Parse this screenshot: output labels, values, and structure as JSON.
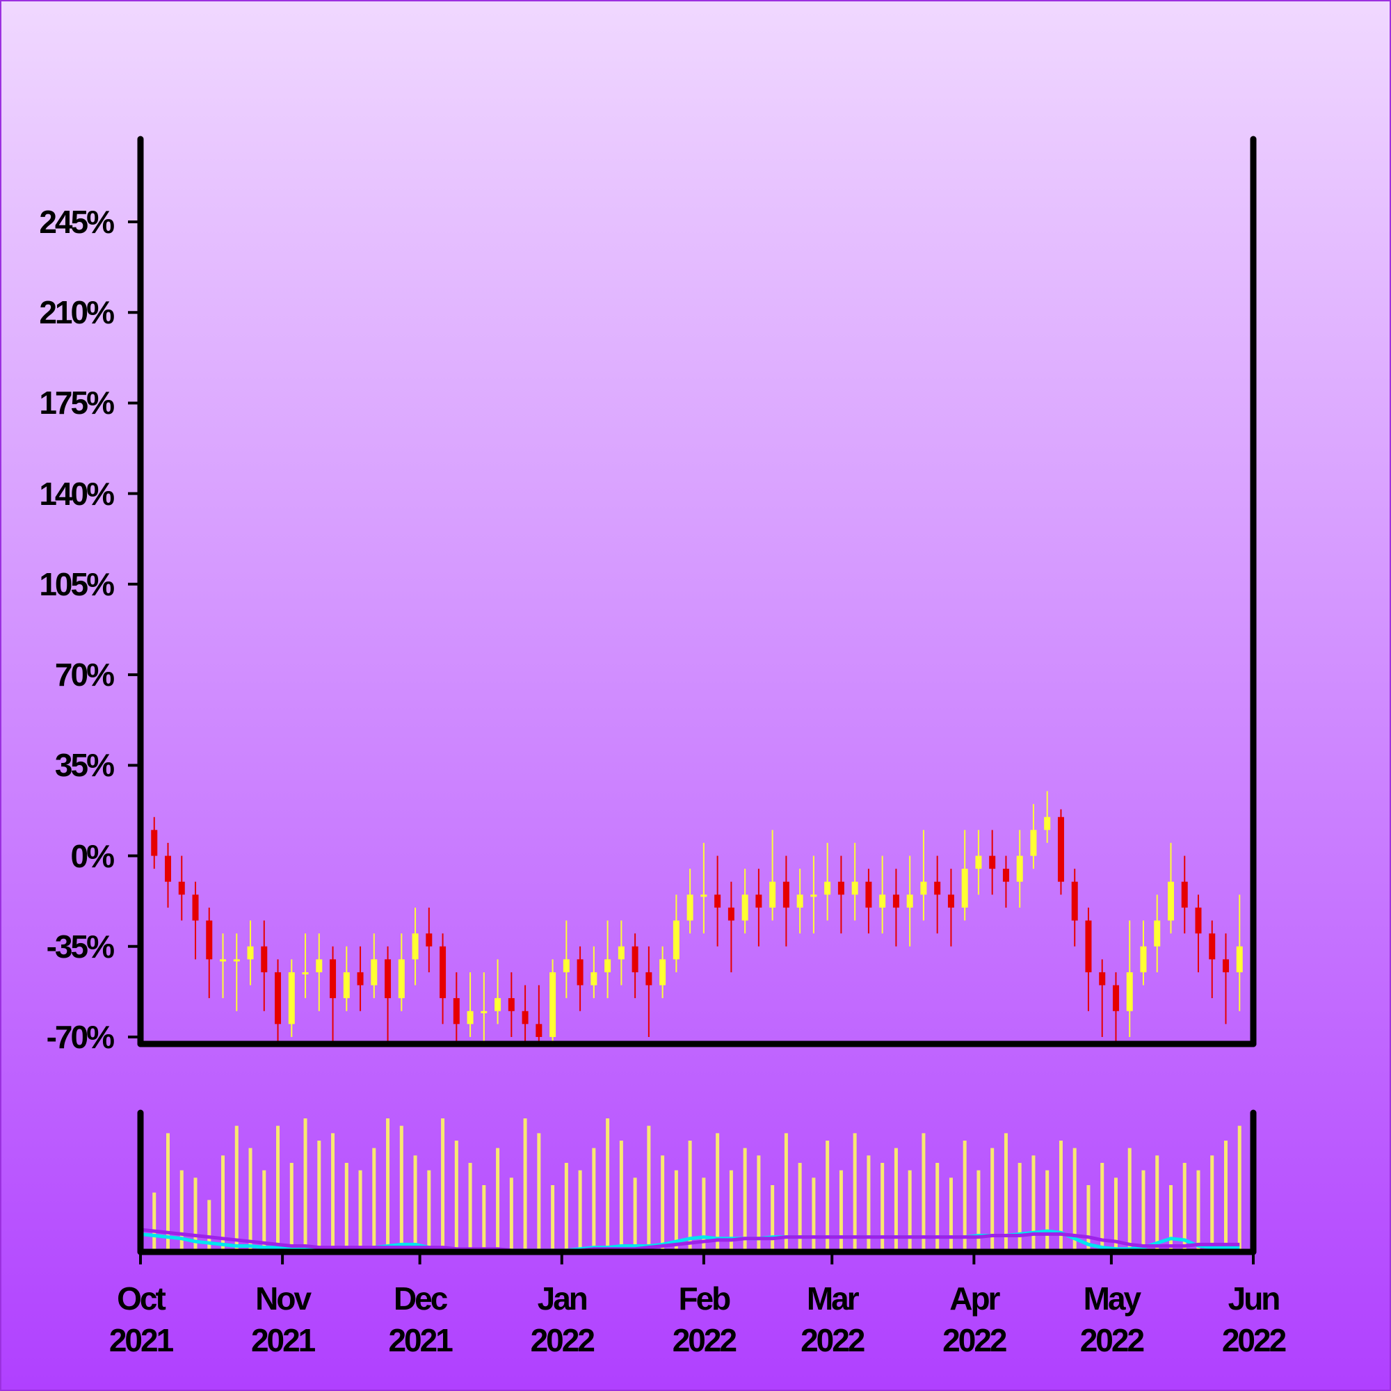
{
  "chart_data": {
    "type": "candlestick",
    "x": [
      "2021-10-01",
      "2021-10-04",
      "2021-10-07",
      "2021-10-10",
      "2021-10-13",
      "2021-10-16",
      "2021-10-19",
      "2021-10-22",
      "2021-10-25",
      "2021-10-28",
      "2021-10-31",
      "2021-11-03",
      "2021-11-06",
      "2021-11-09",
      "2021-11-12",
      "2021-11-15",
      "2021-11-18",
      "2021-11-21",
      "2021-11-24",
      "2021-11-27",
      "2021-11-30",
      "2021-12-03",
      "2021-12-06",
      "2021-12-09",
      "2021-12-12",
      "2021-12-15",
      "2021-12-18",
      "2021-12-21",
      "2021-12-24",
      "2021-12-27",
      "2021-12-30",
      "2022-01-02",
      "2022-01-05",
      "2022-01-08",
      "2022-01-11",
      "2022-01-14",
      "2022-01-17",
      "2022-01-20",
      "2022-01-23",
      "2022-01-26",
      "2022-01-29",
      "2022-02-01",
      "2022-02-04",
      "2022-02-07",
      "2022-02-10",
      "2022-02-13",
      "2022-02-16",
      "2022-02-19",
      "2022-02-22",
      "2022-02-25",
      "2022-02-28",
      "2022-03-03",
      "2022-03-06",
      "2022-03-09",
      "2022-03-12",
      "2022-03-15",
      "2022-03-18",
      "2022-03-21",
      "2022-03-24",
      "2022-03-27",
      "2022-03-30",
      "2022-04-02",
      "2022-04-05",
      "2022-04-08",
      "2022-04-11",
      "2022-04-14",
      "2022-04-17",
      "2022-04-20",
      "2022-04-23",
      "2022-04-26",
      "2022-04-29",
      "2022-05-02",
      "2022-05-05",
      "2022-05-08",
      "2022-05-11",
      "2022-05-14",
      "2022-05-17",
      "2022-05-20",
      "2022-05-23",
      "2022-05-26",
      "2022-05-29"
    ],
    "open": [
      15,
      10,
      0,
      -10,
      -15,
      -25,
      -40,
      -40,
      -40,
      -35,
      -45,
      -65,
      -45,
      -45,
      -40,
      -55,
      -45,
      -50,
      -40,
      -55,
      -40,
      -30,
      -35,
      -55,
      -65,
      -60,
      -60,
      -55,
      -60,
      -65,
      -70,
      -45,
      -40,
      -50,
      -45,
      -40,
      -35,
      -45,
      -50,
      -40,
      -25,
      -15,
      -15,
      -20,
      -25,
      -15,
      -20,
      -10,
      -20,
      -15,
      -15,
      -10,
      -15,
      -10,
      -20,
      -15,
      -20,
      -15,
      -10,
      -15,
      -20,
      -5,
      0,
      -5,
      -10,
      0,
      10,
      15,
      -10,
      -25,
      -45,
      -50,
      -60,
      -45,
      -35,
      -25,
      -10,
      -20,
      -30,
      -40,
      -45
    ],
    "high": [
      25,
      15,
      5,
      0,
      -10,
      -20,
      -30,
      -30,
      -25,
      -25,
      -40,
      -40,
      -30,
      -30,
      -35,
      -35,
      -35,
      -30,
      -35,
      -30,
      -20,
      -20,
      -30,
      -45,
      -45,
      -45,
      -40,
      -45,
      -50,
      -50,
      -40,
      -25,
      -35,
      -35,
      -25,
      -25,
      -30,
      -35,
      -35,
      -15,
      -5,
      5,
      0,
      -10,
      -5,
      -5,
      10,
      0,
      -5,
      0,
      5,
      0,
      5,
      -5,
      0,
      -5,
      0,
      10,
      0,
      -5,
      10,
      10,
      10,
      0,
      10,
      20,
      25,
      18,
      -5,
      -20,
      -40,
      -45,
      -25,
      -25,
      -15,
      5,
      0,
      -15,
      -25,
      -30,
      -15
    ],
    "low": [
      0,
      -5,
      -20,
      -25,
      -40,
      -55,
      -55,
      -60,
      -50,
      -60,
      -72,
      -70,
      -55,
      -60,
      -72,
      -60,
      -60,
      -55,
      -72,
      -60,
      -50,
      -45,
      -65,
      -72,
      -70,
      -72,
      -65,
      -70,
      -72,
      -75,
      -72,
      -55,
      -60,
      -55,
      -55,
      -50,
      -55,
      -70,
      -55,
      -45,
      -30,
      -30,
      -35,
      -45,
      -30,
      -35,
      -25,
      -35,
      -30,
      -30,
      -25,
      -30,
      -25,
      -30,
      -30,
      -35,
      -35,
      -25,
      -30,
      -35,
      -25,
      -15,
      -15,
      -20,
      -20,
      -5,
      5,
      -15,
      -35,
      -60,
      -70,
      -72,
      -70,
      -50,
      -45,
      -30,
      -30,
      -45,
      -55,
      -65,
      -60
    ],
    "close": [
      10,
      0,
      -10,
      -15,
      -25,
      -40,
      -40,
      -40,
      -35,
      -45,
      -65,
      -45,
      -45,
      -40,
      -55,
      -45,
      -50,
      -40,
      -55,
      -40,
      -30,
      -35,
      -55,
      -65,
      -60,
      -60,
      -55,
      -60,
      -65,
      -70,
      -45,
      -40,
      -50,
      -45,
      -40,
      -35,
      -45,
      -50,
      -40,
      -25,
      -15,
      -15,
      -20,
      -25,
      -15,
      -20,
      -10,
      -20,
      -15,
      -15,
      -10,
      -15,
      -10,
      -20,
      -15,
      -20,
      -15,
      -10,
      -15,
      -20,
      -5,
      0,
      -5,
      -10,
      0,
      10,
      15,
      -10,
      -25,
      -45,
      -50,
      -60,
      -45,
      -35,
      -25,
      -10,
      -20,
      -30,
      -40,
      -45,
      -35
    ],
    "volume": [
      62,
      40,
      80,
      55,
      50,
      35,
      65,
      85,
      70,
      55,
      85,
      60,
      90,
      75,
      80,
      60,
      55,
      70,
      90,
      85,
      65,
      55,
      90,
      75,
      60,
      45,
      70,
      50,
      90,
      80,
      45,
      60,
      55,
      70,
      90,
      75,
      50,
      85,
      65,
      55,
      75,
      50,
      80,
      55,
      70,
      65,
      45,
      80,
      60,
      50,
      75,
      55,
      80,
      65,
      60,
      70,
      55,
      80,
      60,
      50,
      75,
      55,
      70,
      80,
      60,
      65,
      55,
      75,
      70,
      45,
      60,
      50,
      70,
      55,
      65,
      45,
      60,
      55,
      65,
      75,
      85
    ],
    "volume_lines": [
      {
        "color": "#00e5f0",
        "values": [
          12,
          11,
          10,
          9,
          7,
          6,
          5,
          4,
          4,
          3,
          3,
          2,
          2,
          2,
          2,
          2,
          2,
          3,
          4,
          5,
          5,
          3,
          2,
          1,
          1,
          1,
          1,
          1,
          1,
          1,
          1,
          1,
          2,
          3,
          3,
          4,
          4,
          4,
          5,
          7,
          9,
          10,
          9,
          9,
          9,
          9,
          10,
          10,
          10,
          10,
          10,
          10,
          10,
          10,
          10,
          10,
          10,
          10,
          10,
          10,
          10,
          11,
          11,
          11,
          12,
          13,
          14,
          13,
          9,
          5,
          3,
          2,
          2,
          3,
          6,
          9,
          8,
          4,
          3,
          3,
          3
        ]
      },
      {
        "color": "#9d22e8",
        "values": [
          15,
          14,
          13,
          12,
          11,
          10,
          9,
          8,
          7,
          6,
          5,
          4,
          4,
          3,
          3,
          3,
          3,
          3,
          3,
          3,
          3,
          3,
          3,
          2,
          2,
          2,
          2,
          1,
          1,
          1,
          1,
          1,
          1,
          2,
          2,
          2,
          2,
          3,
          4,
          5,
          6,
          7,
          8,
          8,
          9,
          9,
          9,
          10,
          10,
          10,
          10,
          10,
          10,
          10,
          10,
          10,
          10,
          10,
          10,
          10,
          10,
          10,
          11,
          11,
          11,
          12,
          12,
          12,
          11,
          10,
          8,
          7,
          5,
          4,
          4,
          4,
          4,
          5,
          5,
          5,
          5
        ]
      }
    ],
    "colors": {
      "up": "#ffff33",
      "down": "#e60000",
      "volume": "#f8e870"
    },
    "xlim": [
      "2021-10-01",
      "2022-06-01"
    ],
    "xticks": [
      {
        "value": "2021-10-01",
        "label": "Oct 2021"
      },
      {
        "value": "2021-11-01",
        "label": "Nov 2021"
      },
      {
        "value": "2021-12-01",
        "label": "Dec 2021"
      },
      {
        "value": "2022-01-01",
        "label": "Jan 2022"
      },
      {
        "value": "2022-02-01",
        "label": "Feb 2022"
      },
      {
        "value": "2022-03-01",
        "label": "Mar 2022"
      },
      {
        "value": "2022-04-01",
        "label": "Apr 2022"
      },
      {
        "value": "2022-05-01",
        "label": "May 2022"
      },
      {
        "value": "2022-06-01",
        "label": "Jun 2022"
      }
    ],
    "ylim": [
      -72.7,
      277
    ],
    "yticks": [
      {
        "value": -70,
        "label": "-70%"
      },
      {
        "value": -35,
        "label": "-35%"
      },
      {
        "value": 0,
        "label": "0%"
      },
      {
        "value": 35,
        "label": "35%"
      },
      {
        "value": 70,
        "label": "70%"
      },
      {
        "value": 105,
        "label": "105%"
      },
      {
        "value": 140,
        "label": "140%"
      },
      {
        "value": 175,
        "label": "175%"
      },
      {
        "value": 210,
        "label": "210%"
      },
      {
        "value": 245,
        "label": "245%"
      }
    ]
  }
}
